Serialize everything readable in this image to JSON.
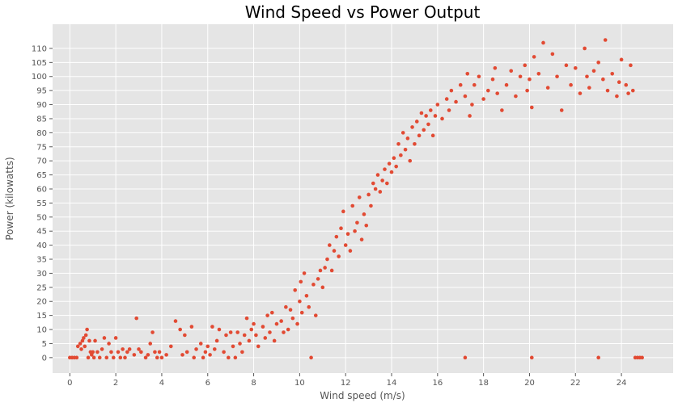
{
  "chart_data": {
    "type": "scatter",
    "title": "Wind Speed vs Power Output",
    "x_label": "Wind speed (m/s)",
    "y_label": "Power (kilowatts)",
    "color": "#E24A33",
    "background": "#E5E5E5",
    "grid": true,
    "xlim": [
      -0.75,
      26.25
    ],
    "ylim": [
      -5.5,
      118.6
    ],
    "xticks": [
      0,
      2,
      4,
      6,
      8,
      10,
      12,
      14,
      16,
      18,
      20,
      22,
      24
    ],
    "yticks": [
      0,
      5,
      10,
      15,
      20,
      25,
      30,
      35,
      40,
      45,
      50,
      55,
      60,
      65,
      70,
      75,
      80,
      85,
      90,
      95,
      100,
      105,
      110
    ],
    "x": [
      0.0,
      0.1,
      0.2,
      0.3,
      0.35,
      0.45,
      0.5,
      0.55,
      0.6,
      0.65,
      0.7,
      0.75,
      0.8,
      0.85,
      0.9,
      0.95,
      1.0,
      1.05,
      1.1,
      1.2,
      1.3,
      1.4,
      1.5,
      1.6,
      1.7,
      1.8,
      1.9,
      2.0,
      2.1,
      2.2,
      2.3,
      2.4,
      2.5,
      2.6,
      2.8,
      2.9,
      3.0,
      3.1,
      3.3,
      3.4,
      3.5,
      3.6,
      3.7,
      3.8,
      3.9,
      4.0,
      4.2,
      4.4,
      4.6,
      4.8,
      4.9,
      5.0,
      5.1,
      5.3,
      5.4,
      5.5,
      5.7,
      5.8,
      5.9,
      6.0,
      6.1,
      6.2,
      6.3,
      6.4,
      6.5,
      6.7,
      6.8,
      6.9,
      7.0,
      7.1,
      7.2,
      7.3,
      7.4,
      7.5,
      7.6,
      7.7,
      7.8,
      7.9,
      8.0,
      8.1,
      8.2,
      8.4,
      8.5,
      8.6,
      8.7,
      8.8,
      8.9,
      9.0,
      9.2,
      9.3,
      9.4,
      9.5,
      9.6,
      9.7,
      9.8,
      9.9,
      10.0,
      10.05,
      10.1,
      10.2,
      10.3,
      10.4,
      10.5,
      10.6,
      10.7,
      10.8,
      10.9,
      11.0,
      11.1,
      11.2,
      11.3,
      11.4,
      11.5,
      11.6,
      11.7,
      11.8,
      11.9,
      12.0,
      12.1,
      12.2,
      12.3,
      12.4,
      12.5,
      12.6,
      12.7,
      12.8,
      12.9,
      13.0,
      13.1,
      13.2,
      13.3,
      13.4,
      13.5,
      13.6,
      13.7,
      13.8,
      13.9,
      14.0,
      14.1,
      14.2,
      14.3,
      14.4,
      14.5,
      14.6,
      14.7,
      14.8,
      14.9,
      15.0,
      15.1,
      15.2,
      15.3,
      15.4,
      15.5,
      15.6,
      15.7,
      15.8,
      15.9,
      16.0,
      16.2,
      16.4,
      16.5,
      16.6,
      16.8,
      17.0,
      17.2,
      17.2,
      17.3,
      17.4,
      17.5,
      17.6,
      17.8,
      18.0,
      18.2,
      18.4,
      18.5,
      18.6,
      18.8,
      19.0,
      19.2,
      19.4,
      19.6,
      19.8,
      19.9,
      20.0,
      20.1,
      20.1,
      20.2,
      20.4,
      20.6,
      20.8,
      21.0,
      21.2,
      21.4,
      21.6,
      21.8,
      22.0,
      22.2,
      22.4,
      22.5,
      22.6,
      22.8,
      23.0,
      23.0,
      23.2,
      23.3,
      23.4,
      23.6,
      23.8,
      24.0,
      24.2,
      24.4,
      24.6,
      24.7,
      24.8,
      24.9,
      24.5,
      23.9,
      24.3
    ],
    "values": [
      0,
      0,
      0,
      0,
      4,
      5,
      3,
      6,
      7,
      4,
      8,
      10,
      0,
      6,
      2,
      1,
      2,
      0,
      6,
      2,
      0,
      3,
      7,
      0,
      5,
      2,
      0,
      7,
      2,
      0,
      3,
      0,
      2,
      3,
      1,
      14,
      3,
      2,
      0,
      1,
      5,
      9,
      2,
      0,
      2,
      0,
      1,
      4,
      13,
      10,
      1,
      8,
      2,
      11,
      0,
      3,
      5,
      0,
      2,
      4,
      1,
      11,
      3,
      6,
      10,
      2,
      8,
      0,
      9,
      4,
      0,
      9,
      5,
      2,
      8,
      14,
      6,
      10,
      12,
      8,
      4,
      11,
      7,
      15,
      9,
      16,
      6,
      12,
      13,
      9,
      18,
      10,
      17,
      14,
      24,
      12,
      20,
      27,
      16,
      30,
      22,
      18,
      0,
      26,
      15,
      28,
      31,
      25,
      32,
      35,
      40,
      31,
      38,
      43,
      36,
      46,
      52,
      40,
      44,
      38,
      54,
      45,
      48,
      57,
      42,
      51,
      47,
      58,
      54,
      62,
      60,
      65,
      59,
      63,
      67,
      62,
      69,
      66,
      71,
      68,
      76,
      72,
      80,
      74,
      78,
      70,
      82,
      76,
      84,
      79,
      87,
      81,
      86,
      83,
      88,
      79,
      86,
      90,
      85,
      92,
      88,
      95,
      91,
      97,
      0,
      93,
      101,
      86,
      90,
      97,
      100,
      92,
      95,
      99,
      103,
      94,
      88,
      97,
      102,
      93,
      100,
      104,
      95,
      99,
      89,
      0,
      107,
      101,
      112,
      96,
      108,
      100,
      88,
      104,
      97,
      103,
      94,
      110,
      100,
      96,
      102,
      0,
      105,
      99,
      113,
      95,
      101,
      93,
      106,
      97,
      104,
      0,
      0,
      0,
      0,
      95,
      98,
      94
    ]
  }
}
